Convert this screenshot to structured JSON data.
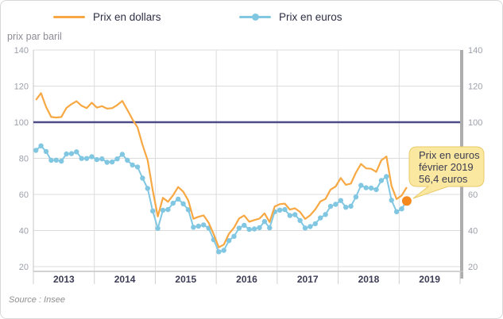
{
  "legend": {
    "items": [
      {
        "label": "Prix en dollars",
        "color": "#f7a843",
        "type": "line"
      },
      {
        "label": "Prix en euros",
        "color": "#82c7e2",
        "type": "line-dot"
      }
    ]
  },
  "chart_data": {
    "type": "line",
    "ylabel": "prix par baril",
    "y_ticks": [
      20,
      40,
      60,
      80,
      100,
      120,
      140
    ],
    "ylim": [
      20,
      140
    ],
    "grid": true,
    "reference_line": {
      "value": 100,
      "color": "#4e4c88"
    },
    "years": [
      "2013",
      "2014",
      "2015",
      "2016",
      "2017",
      "2018",
      "2019"
    ],
    "x_range": "janvier 2013 - février 2019",
    "series": [
      {
        "name": "Prix en dollars",
        "color": "#f7a843",
        "markers": false,
        "values": [
          112.3,
          116.1,
          108.5,
          102.9,
          102.6,
          102.9,
          107.9,
          110,
          111.6,
          109.1,
          107.8,
          110.8,
          108.1,
          108.9,
          107.5,
          107.8,
          109.5,
          111.8,
          106.8,
          101.6,
          97.1,
          87.4,
          79,
          62.3,
          47.8,
          58.1,
          55.9,
          59.5,
          64.1,
          61.5,
          56.6,
          46.5,
          47.6,
          48.4,
          44.3,
          38,
          30.7,
          32.2,
          38.2,
          41.6,
          46.7,
          48.3,
          44.9,
          45.8,
          46.6,
          49.5,
          44.7,
          53.3,
          54.6,
          54.9,
          51.6,
          52.3,
          50.3,
          46.4,
          48.5,
          51.7,
          56.1,
          57.5,
          62.7,
          64.4,
          69.1,
          65.3,
          66,
          72.1,
          76.9,
          74.4,
          74.2,
          72.5,
          78.9,
          81,
          64.7,
          57.4,
          59.4,
          64
        ]
      },
      {
        "name": "Prix en euros",
        "color": "#82c7e2",
        "markers": true,
        "values": [
          84.4,
          86.9,
          83.8,
          78.9,
          79,
          78.4,
          82.4,
          82.6,
          83.6,
          79.9,
          79.9,
          80.9,
          79.3,
          79.7,
          77.8,
          78,
          79.7,
          82.2,
          78.9,
          76.3,
          75.2,
          69,
          63.3,
          50.8,
          41.2,
          51.2,
          51.6,
          55.1,
          57.4,
          54.8,
          51.5,
          41.8,
          42.4,
          43.1,
          41.3,
          34.9,
          28.2,
          29,
          34.4,
          36.8,
          41.3,
          42.9,
          40.6,
          40.9,
          41.6,
          45,
          41.5,
          50.4,
          51.3,
          51.6,
          48.3,
          48.8,
          45.6,
          41.4,
          42.2,
          43.8,
          47,
          48.9,
          53.4,
          54.5,
          56.6,
          52.9,
          53.5,
          58.6,
          65,
          63.7,
          63.5,
          62.7,
          67.7,
          69.9,
          56.8,
          50.4,
          52,
          56.4
        ]
      }
    ],
    "highlight": {
      "series": "Prix en euros",
      "label": "février 2019",
      "value": 56.4,
      "color": "#f5891d"
    }
  },
  "tooltip": {
    "line1": "Prix en euros",
    "line2": "février 2019",
    "line3": "56,4 euros",
    "bg": "#fbe8a0",
    "border": "#e9ca69"
  },
  "source": "Source : Insee"
}
